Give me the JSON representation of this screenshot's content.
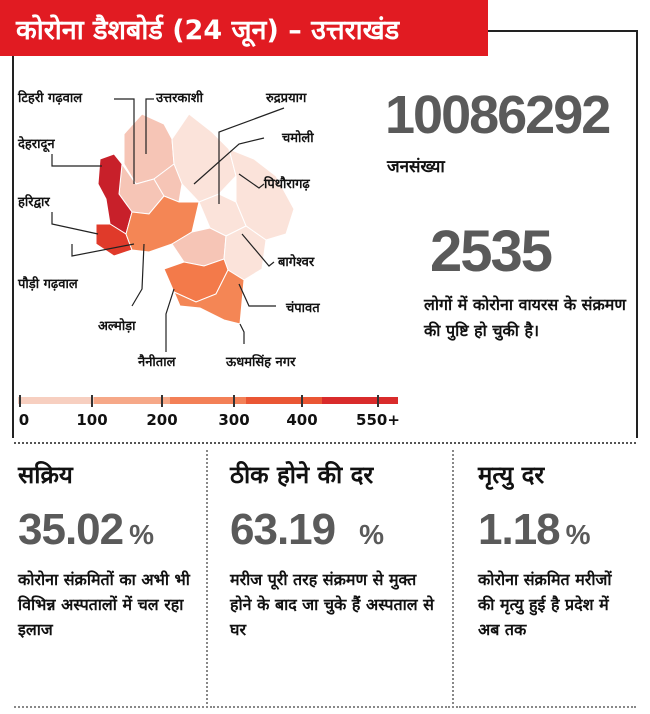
{
  "header": {
    "title": "कोरोना डैशबोर्ड (24 जून) – उत्तराखंड",
    "bg_color": "#e11b22"
  },
  "map": {
    "districts": [
      {
        "id": "tehri",
        "label": "टिहरी गढ़वाल",
        "color": "#f6c5b6"
      },
      {
        "id": "uttarkashi",
        "label": "उत्तरकाशी",
        "color": "#f6c5b6"
      },
      {
        "id": "rudraprayag",
        "label": "रुद्रप्रयाग",
        "color": "#f6c5b6"
      },
      {
        "id": "chamoli",
        "label": "चमोली",
        "color": "#fbe3da"
      },
      {
        "id": "dehradun",
        "label": "देहरादून",
        "color": "#c8202a"
      },
      {
        "id": "pithoragarh",
        "label": "पिथौरागढ़",
        "color": "#fbe3da"
      },
      {
        "id": "haridwar",
        "label": "हरिद्वार",
        "color": "#e03a2a"
      },
      {
        "id": "bageshwar",
        "label": "बागेश्वर",
        "color": "#fbe3da"
      },
      {
        "id": "pauri",
        "label": "पौड़ी गढ़वाल",
        "color": "#f48655"
      },
      {
        "id": "champawat",
        "label": "चंपावत",
        "color": "#fbe3da"
      },
      {
        "id": "almora",
        "label": "अल्मोड़ा",
        "color": "#f6c5b6"
      },
      {
        "id": "nainital",
        "label": "नैनीताल",
        "color": "#f37a4a"
      },
      {
        "id": "usnagar",
        "label": "ऊधमसिंह नगर",
        "color": "#f48655"
      }
    ]
  },
  "legend": {
    "labels": [
      "0",
      "100",
      "200",
      "300",
      "400",
      "550+"
    ],
    "colors": [
      "#f7cfc0",
      "#f6a888",
      "#f38057",
      "#ea5634",
      "#d92b2b"
    ]
  },
  "population": {
    "value": "10086292",
    "label": "जनसंख्या"
  },
  "infected": {
    "value": "2535",
    "description": "लोगों में कोरोना वायरस के संक्रमण की पुष्टि हो चुकी है।"
  },
  "stats": [
    {
      "title": "सक्रिय",
      "value": "35.02",
      "unit": "%",
      "description": "कोरोना संक्रमितों का अभी भी विभिन्न अस्पतालों में चल रहा इलाज"
    },
    {
      "title": "ठीक होने की दर",
      "value": "63.19",
      "unit": "%",
      "description": "मरीज पूरी तरह संक्रमण से मुक्त होने के बाद जा चुके हैं अस्पताल से घर"
    },
    {
      "title": "मृत्यु दर",
      "value": "1.18",
      "unit": "%",
      "description": "कोरोना संक्रमित मरीजों की मृत्यु हुई है प्रदेश में अब तक"
    }
  ]
}
